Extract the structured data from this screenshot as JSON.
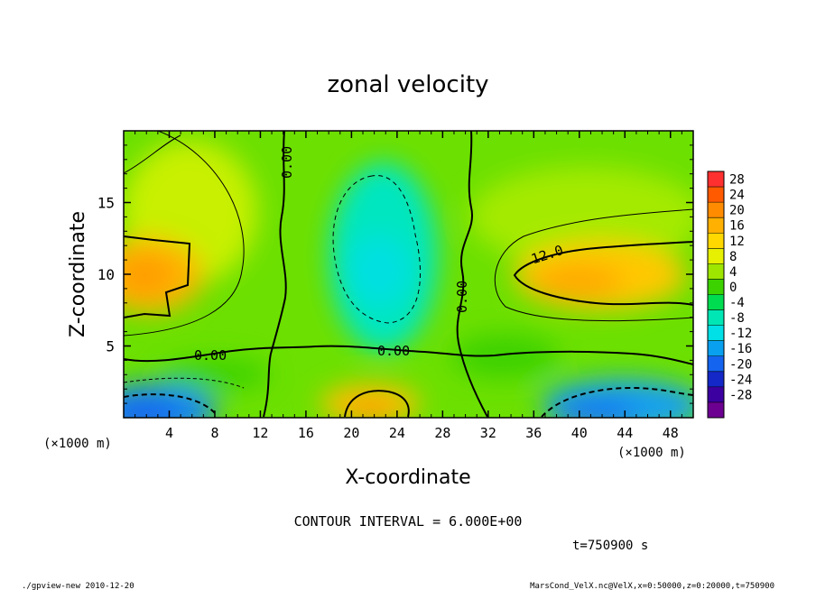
{
  "chart_data": {
    "type": "heatmap",
    "title": "zonal velocity",
    "xlabel": "X-coordinate",
    "ylabel": "Z-coordinate",
    "x_unit_label": "(×1000 m)",
    "y_unit_label": "(×1000 m)",
    "xlim": [
      0,
      50
    ],
    "ylim": [
      0,
      20
    ],
    "x_ticks": [
      4,
      8,
      12,
      16,
      20,
      24,
      28,
      32,
      36,
      40,
      44,
      48
    ],
    "y_ticks": [
      5,
      10,
      15
    ],
    "colorbar": {
      "levels": [
        28,
        24,
        20,
        16,
        12,
        8,
        4,
        0,
        -4,
        -8,
        -12,
        -16,
        -20,
        -24,
        -28
      ],
      "colors": [
        "#ff3030",
        "#ff5a00",
        "#ff8c00",
        "#ffb000",
        "#ffd800",
        "#e6f000",
        "#9ee600",
        "#3cd200",
        "#00dc50",
        "#00e6b4",
        "#00e0e6",
        "#0aa0f0",
        "#1464f0",
        "#1428c8",
        "#3c00a0",
        "#6c0090"
      ]
    },
    "contour_interval": "CONTOUR INTERVAL = 6.000E+00",
    "contour_labels": [
      "0.00",
      "0.00",
      "0.00",
      "0.00",
      "12.0"
    ],
    "value_features": [
      {
        "name": "left jet",
        "x": 2,
        "z": 10,
        "u": 14
      },
      {
        "name": "right jet",
        "x": 41,
        "z": 10,
        "u": 14
      },
      {
        "name": "central return flow",
        "x": 22,
        "z": 11,
        "u": -10
      },
      {
        "name": "lower-left reversal",
        "x": 2,
        "z": 1,
        "u": -18
      },
      {
        "name": "lower-right reversal",
        "x": 42,
        "z": 1,
        "u": -16
      },
      {
        "name": "lower-central jet",
        "x": 22,
        "z": 1,
        "u": 14
      }
    ]
  },
  "footer": {
    "time": "t=750900 s",
    "program": "./gpview-new   2010-12-20",
    "source": "MarsCond_VelX.nc@VelX,x=0:50000,z=0:20000,t=750900"
  }
}
